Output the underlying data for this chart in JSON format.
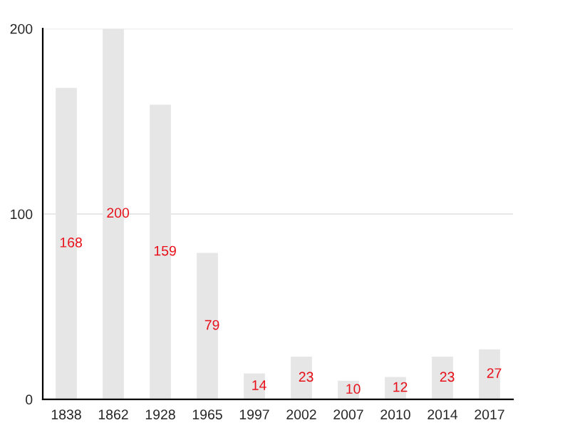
{
  "chart_data": {
    "type": "bar",
    "categories": [
      "1838",
      "1862",
      "1928",
      "1965",
      "1997",
      "2002",
      "2007",
      "2010",
      "2014",
      "2017"
    ],
    "values": [
      168,
      200,
      159,
      79,
      14,
      23,
      10,
      12,
      23,
      27
    ],
    "color": "#e6e6e6",
    "ylim": [
      0,
      200
    ],
    "yticks": [
      0,
      100,
      200
    ],
    "grid": "y",
    "data_labels": true
  }
}
